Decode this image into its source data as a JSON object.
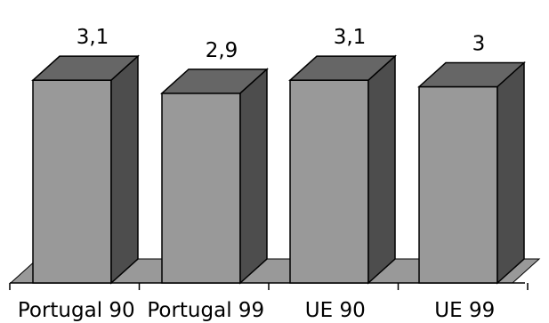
{
  "chart_data": {
    "type": "bar",
    "style": "3d-column",
    "categories": [
      "Portugal 90",
      "Portugal 99",
      "UE 90",
      "UE 99"
    ],
    "values": [
      3.1,
      2.9,
      3.1,
      3.0
    ],
    "value_labels": [
      "3,1",
      "2,9",
      "3,1",
      "3"
    ],
    "title": "",
    "xlabel": "",
    "ylabel": "",
    "ylim": [
      0,
      3.1
    ],
    "grid": false,
    "legend": "none",
    "colors": {
      "bar_front": "#999999",
      "bar_top": "#666666",
      "bar_side": "#4d4d4d",
      "floor": "#999999",
      "outline": "#000000"
    }
  }
}
